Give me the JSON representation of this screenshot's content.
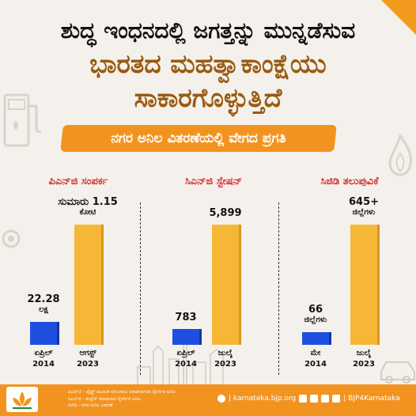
{
  "header": {
    "line1": "ಶುದ್ಧ ಇಂಧನದಲ್ಲಿ ಜಗತ್ತನ್ನು ಮುನ್ನಡೆಸುವ",
    "line2": "ಭಾರತದ ಮಹತ್ವಾಕಾಂಕ್ಷೆಯು",
    "line3": "ಸಾಕಾರಗೊಳ್ಳುತ್ತಿದೆ",
    "banner": "ನಗರ ಅನಿಲ ವಿತರಣೆಯಲ್ಲಿ ವೇಗದ ಪ್ರಗತಿ"
  },
  "chart_data": [
    {
      "type": "bar",
      "title": "ಪಿಎನ್‌ಜಿ ಸಂಪರ್ಕ",
      "categories": [
        "ಏಪ್ರಿಲ್ 2014",
        "ಆಗಸ್ಟ್ 2023"
      ],
      "cat_top": [
        "ಏಪ್ರಿಲ್",
        "ಆಗಸ್ಟ್"
      ],
      "cat_bottom": [
        "2014",
        "2023"
      ],
      "values": [
        2228000,
        11500000
      ],
      "labels": [
        {
          "num": "22.28",
          "unit": "ಲಕ್ಷ"
        },
        {
          "num": "ಸುಮಾರು 1.15",
          "unit": "ಕೋಟಿ"
        }
      ],
      "colors": [
        "#1f4fe0",
        "#f7b736"
      ]
    },
    {
      "type": "bar",
      "title": "ಸಿಎನ್‌ಜಿ ಸ್ಟೇಷನ್",
      "categories": [
        "ಏಪ್ರಿಲ್ 2014",
        "ಜುಲೈ 2023"
      ],
      "cat_top": [
        "ಏಪ್ರಿಲ್",
        "ಜುಲೈ"
      ],
      "cat_bottom": [
        "2014",
        "2023"
      ],
      "values": [
        783,
        5899
      ],
      "labels": [
        {
          "num": "783",
          "unit": ""
        },
        {
          "num": "5,899",
          "unit": ""
        }
      ],
      "colors": [
        "#1f4fe0",
        "#f7b736"
      ]
    },
    {
      "type": "bar",
      "title": "ಸಿಜಿಡಿ ತಲುಪುವಿಕೆ",
      "categories": [
        "ಮೇ 2014",
        "ಜುಲೈ 2023"
      ],
      "cat_top": [
        "ಮೇ",
        "ಜುಲೈ"
      ],
      "cat_bottom": [
        "2014",
        "2023"
      ],
      "values": [
        66,
        645
      ],
      "labels": [
        {
          "num": "66",
          "unit": "ಜಿಲ್ಲೆಗಳು"
        },
        {
          "num": "645+",
          "unit": "ಜಿಲ್ಲೆಗಳು"
        }
      ],
      "colors": [
        "#1f4fe0",
        "#f7b736"
      ]
    }
  ],
  "footer": {
    "note1": "ಪಿಎನ್‌ಜಿ - ಪೈಪ್ಡ್ ಮೂಲಕ ಸರಬರಾಜು ಮಾಡಲಾಗುವ ನೈಸರ್ಗಿಕ ಅನಿಲ",
    "note2": "ಸಿಎನ್‌ಜಿ - ಕಂಪ್ರೆಸ್ ಮಾಡಲಾದ ನೈಸರ್ಗಿಕ ಅನಿಲ",
    "note3": "ಸಿಜಿಡಿ - ನಗರ ಅನಿಲ ವಿತರಣೆ",
    "website": "| karnataka.bjp.org",
    "handle": "| BJP4Karnataka"
  }
}
